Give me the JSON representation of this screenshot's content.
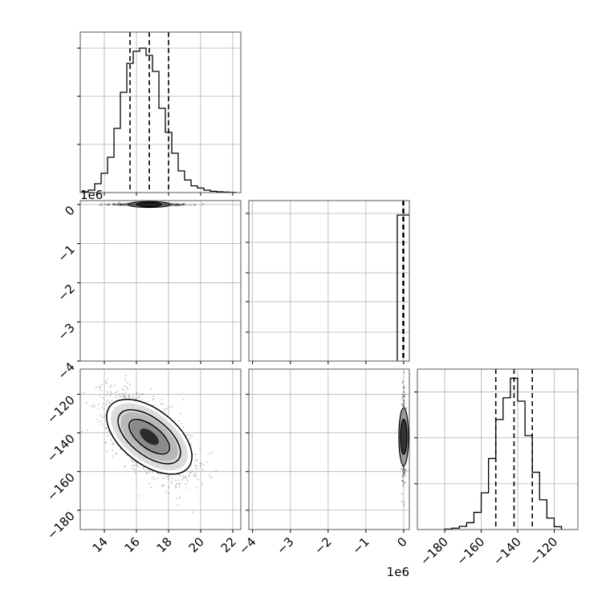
{
  "chart_data": [
    {
      "panel": "hist-param-1",
      "type": "histogram",
      "xlim": [
        12.5,
        22.5
      ],
      "bin_edges": [
        12.6,
        13.0,
        13.4,
        13.8,
        14.2,
        14.6,
        15.0,
        15.4,
        15.8,
        16.2,
        16.6,
        17.0,
        17.4,
        17.8,
        18.2,
        18.6,
        19.0,
        19.4,
        19.8,
        20.2,
        20.6,
        21.0,
        21.4,
        21.8,
        22.2
      ],
      "counts": [
        5,
        15,
        55,
        120,
        220,
        400,
        625,
        805,
        880,
        900,
        855,
        755,
        525,
        375,
        245,
        135,
        78,
        42,
        28,
        15,
        8,
        5,
        3,
        1
      ],
      "ymax": 1000,
      "quantiles": [
        15.6,
        16.8,
        18.0
      ],
      "grid": true
    },
    {
      "panel": "scatter-param2-vs-param1",
      "type": "scatter",
      "xlim": [
        12.5,
        22.5
      ],
      "ylim": [
        -4000000,
        100000
      ],
      "y_offset_label": "1e6",
      "y_ticks": [
        "0",
        "−1",
        "−2",
        "−3",
        "−4"
      ],
      "y_tick_values": [
        0,
        -1000000,
        -2000000,
        -3000000,
        -4000000
      ],
      "note": "all samples concentrated near y = 0",
      "grid": true
    },
    {
      "panel": "hist-param-2",
      "type": "histogram",
      "xlim": [
        -4100000,
        150000
      ],
      "quantiles": [
        -20000,
        -6000,
        0
      ],
      "note": "nearly all mass in a single bin at 0",
      "grid": true
    },
    {
      "panel": "scatter-param3-vs-param1",
      "type": "scatter",
      "xlim": [
        12.5,
        22.5
      ],
      "ylim": [
        -190,
        -107
      ],
      "x_ticks": [
        "14",
        "16",
        "18",
        "20",
        "22"
      ],
      "x_tick_values": [
        14,
        16,
        18,
        20,
        22
      ],
      "y_ticks": [
        "−120",
        "−140",
        "−160",
        "−180"
      ],
      "y_tick_values": [
        -120,
        -140,
        -160,
        -180
      ],
      "mean": [
        16.8,
        -142
      ],
      "correlation": -0.6,
      "contours": true,
      "grid": true
    },
    {
      "panel": "scatter-param3-vs-param2",
      "type": "scatter",
      "xlim": [
        -4100000,
        150000
      ],
      "ylim": [
        -190,
        -107
      ],
      "x_offset_label": "1e6",
      "x_ticks": [
        "−4",
        "−3",
        "−2",
        "−1",
        "0"
      ],
      "x_tick_values": [
        -4000000,
        -3000000,
        -2000000,
        -1000000,
        0
      ],
      "grid": true
    },
    {
      "panel": "hist-param-3",
      "type": "histogram",
      "xlim": [
        -195,
        -107
      ],
      "x_ticks": [
        "−180",
        "−160",
        "−140",
        "−120"
      ],
      "x_tick_values": [
        -180,
        -160,
        -140,
        -120
      ],
      "bin_edges": [
        -180,
        -176,
        -172,
        -168,
        -164,
        -160,
        -156,
        -152,
        -148,
        -144,
        -140,
        -136,
        -132,
        -128,
        -124,
        -120,
        -116
      ],
      "counts": [
        4,
        12,
        28,
        60,
        150,
        320,
        620,
        960,
        1150,
        1320,
        1120,
        820,
        500,
        260,
        100,
        25
      ],
      "ymax": 1400,
      "quantiles": [
        -152,
        -142,
        -132
      ],
      "grid": true
    }
  ]
}
